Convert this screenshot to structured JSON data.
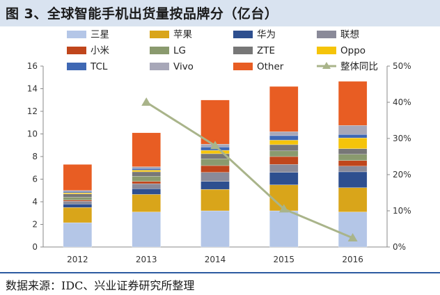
{
  "title": "图 3、全球智能手机出货量按品牌分（亿台）",
  "source": "数据来源：IDC、兴业证券研究所整理",
  "chart_data": {
    "type": "bar",
    "stacked": true,
    "categories": [
      "2012",
      "2013",
      "2014",
      "2015",
      "2016"
    ],
    "ylim": [
      0,
      16
    ],
    "y_ticks": [
      "0",
      "2",
      "4",
      "6",
      "8",
      "10",
      "12",
      "14",
      "16"
    ],
    "y2lim": [
      0,
      0.5
    ],
    "y2_ticks": [
      "0%",
      "10%",
      "20%",
      "30%",
      "40%",
      "50%"
    ],
    "grid": false,
    "legend_position": "top",
    "series": [
      {
        "name": "三星",
        "color": "#b4c6e7",
        "values": [
          2.15,
          3.1,
          3.2,
          3.2,
          3.1
        ]
      },
      {
        "name": "苹果",
        "color": "#d9a51a",
        "values": [
          1.35,
          1.55,
          1.9,
          2.3,
          2.15
        ]
      },
      {
        "name": "华为",
        "color": "#2e4f8f",
        "values": [
          0.3,
          0.5,
          0.7,
          1.1,
          1.4
        ]
      },
      {
        "name": "联想",
        "color": "#8a8a99",
        "values": [
          0.25,
          0.45,
          0.8,
          0.7,
          0.5
        ]
      },
      {
        "name": "小米",
        "color": "#c0461c",
        "values": [
          0.1,
          0.2,
          0.6,
          0.7,
          0.5
        ]
      },
      {
        "name": "LG",
        "color": "#8a9a6e",
        "values": [
          0.25,
          0.45,
          0.6,
          0.5,
          0.55
        ]
      },
      {
        "name": "ZTE",
        "color": "#777777",
        "values": [
          0.3,
          0.4,
          0.45,
          0.55,
          0.5
        ]
      },
      {
        "name": "Oppo",
        "color": "#f5c40a",
        "values": [
          0.1,
          0.15,
          0.3,
          0.4,
          0.95
        ]
      },
      {
        "name": "TCL",
        "color": "#3f68b4",
        "values": [
          0.1,
          0.15,
          0.3,
          0.4,
          0.3
        ]
      },
      {
        "name": "Vivo",
        "color": "#a7a7b8",
        "values": [
          0.1,
          0.15,
          0.25,
          0.35,
          0.8
        ]
      },
      {
        "name": "Other",
        "color": "#e85d23",
        "values": [
          2.3,
          3.0,
          3.9,
          4.0,
          3.9
        ]
      }
    ],
    "line_series": {
      "name": "整体同比",
      "color": "#a9b48a",
      "axis": "right",
      "values": [
        null,
        0.4,
        0.28,
        0.105,
        0.025
      ]
    }
  }
}
